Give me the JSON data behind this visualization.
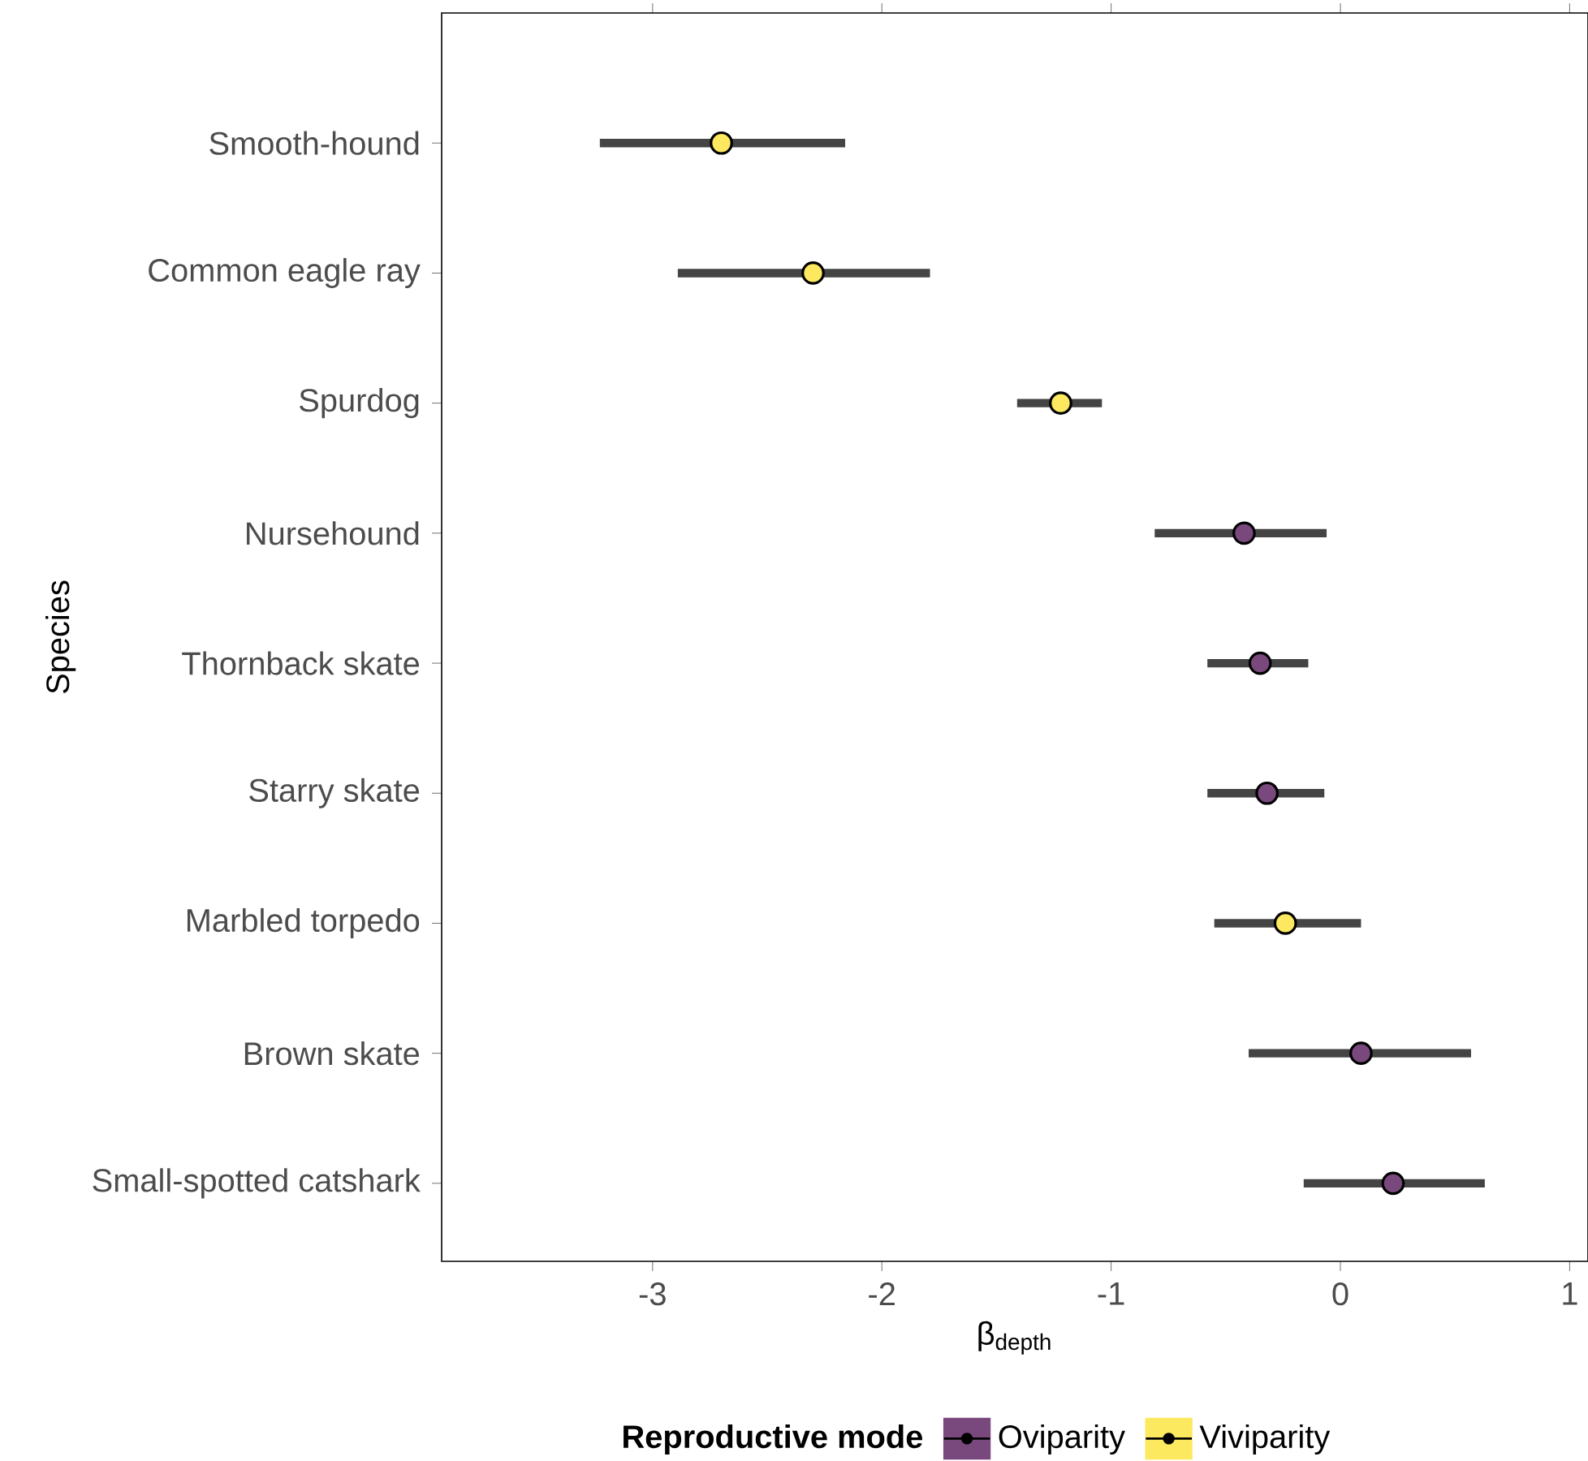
{
  "chart_data": {
    "type": "scatter",
    "orientation": "horizontal",
    "xlabel": "β$_{depth}$",
    "ylabel": "Species",
    "legend_title": "Reproductive mode",
    "categories": [
      "Smooth-hound",
      "Common eagle ray",
      "Spurdog",
      "Nursehound",
      "Thornback skate",
      "Starry skate",
      "Marbled torpedo",
      "Brown skate",
      "Small-spotted catshark"
    ],
    "series": [
      {
        "name": "Oviparity",
        "color": "#79497d",
        "values": [
          null,
          null,
          null,
          -0.42,
          -0.35,
          -0.32,
          null,
          0.09,
          0.23
        ],
        "errors": [
          null,
          null,
          null,
          [
            -0.81,
            -0.06
          ],
          [
            -0.58,
            -0.14
          ],
          [
            -0.58,
            -0.07
          ],
          null,
          [
            -0.4,
            0.57
          ],
          [
            -0.16,
            0.63
          ]
        ]
      },
      {
        "name": "Viviparity",
        "color": "#fde95f",
        "values": [
          -2.7,
          -2.3,
          -1.22,
          null,
          null,
          null,
          -0.24,
          null,
          null
        ],
        "errors": [
          [
            -3.23,
            -2.16
          ],
          [
            -2.89,
            -1.79
          ],
          [
            -1.41,
            -1.04
          ],
          null,
          null,
          null,
          [
            -0.55,
            0.09
          ],
          null,
          null
        ]
      }
    ],
    "xlim": [
      -3.92,
      1.08
    ],
    "xticks": [
      -3,
      -2,
      -1,
      0,
      1
    ],
    "legend": "bottom"
  }
}
